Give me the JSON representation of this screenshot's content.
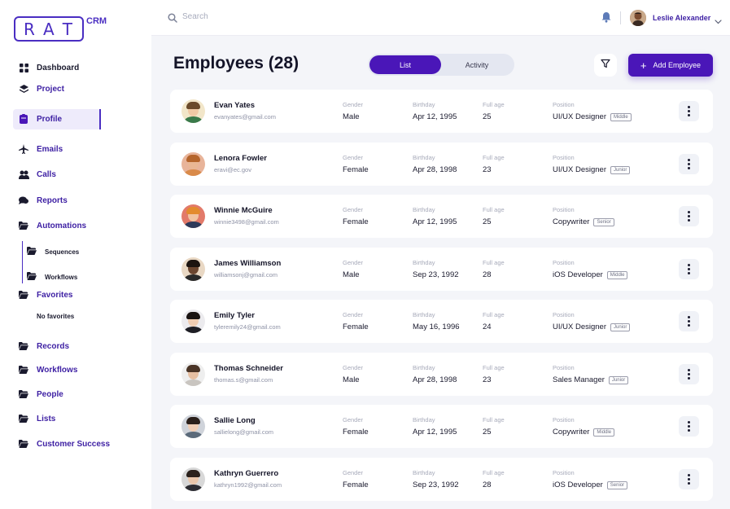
{
  "logo": {
    "letters": [
      "R",
      "A",
      "T"
    ],
    "suffix": "CRM"
  },
  "sidebar": {
    "items": [
      {
        "label": "Dashboard",
        "icon": "grid-icon"
      },
      {
        "label": "Project",
        "icon": "layers-icon"
      },
      {
        "label": "Profile",
        "icon": "clipboard-icon",
        "active": true
      },
      {
        "label": "Emails",
        "icon": "plane-icon"
      },
      {
        "label": "Calls",
        "icon": "users-icon"
      },
      {
        "label": "Reports",
        "icon": "chat-icon"
      },
      {
        "label": "Automations",
        "icon": "folder-open-icon"
      }
    ],
    "sub_items": [
      {
        "label": "Sequences",
        "icon": "folder-icon"
      },
      {
        "label": "Workflows",
        "icon": "folder-icon"
      }
    ],
    "favorites": {
      "label": "Favorites",
      "empty_text": "No favorites"
    },
    "groups": [
      {
        "label": "Records"
      },
      {
        "label": "Workflows"
      },
      {
        "label": "People"
      },
      {
        "label": "Lists"
      },
      {
        "label": "Customer Success"
      }
    ]
  },
  "topbar": {
    "search_placeholder": "Search",
    "user_name": "Leslie Alexander"
  },
  "page": {
    "title": "Employees (28)",
    "tabs": [
      "List",
      "Activity"
    ],
    "active_tab": "List",
    "add_button": "Add Employee"
  },
  "columns": {
    "gender": "Gender",
    "birthday": "Birthday",
    "age": "Full age",
    "position": "Position"
  },
  "employees": [
    {
      "name": "Evan Yates",
      "email": "evanyates@gmail.com",
      "gender": "Male",
      "birthday": "Apr 12, 1995",
      "age": "25",
      "position": "UI/UX Designer",
      "level": "Middle"
    },
    {
      "name": "Lenora Fowler",
      "email": "eravi@ec.gov",
      "gender": "Female",
      "birthday": "Apr 28, 1998",
      "age": "23",
      "position": "UI/UX Designer",
      "level": "Junior"
    },
    {
      "name": "Winnie McGuire",
      "email": "winnie3498@gmail.com",
      "gender": "Female",
      "birthday": "Apr 12, 1995",
      "age": "25",
      "position": "Copywriter",
      "level": "Senior"
    },
    {
      "name": "James Williamson",
      "email": "williamsonj@gmail.com",
      "gender": "Male",
      "birthday": "Sep 23, 1992",
      "age": "28",
      "position": "iOS Developer",
      "level": "Middle"
    },
    {
      "name": "Emily Tyler",
      "email": "tyleremily24@gmail.com",
      "gender": "Female",
      "birthday": "May 16, 1996",
      "age": "24",
      "position": "UI/UX Designer",
      "level": "Junior"
    },
    {
      "name": "Thomas Schneider",
      "email": "thomas.s@gmail.com",
      "gender": "Male",
      "birthday": "Apr 28, 1998",
      "age": "23",
      "position": "Sales Manager",
      "level": "Junior"
    },
    {
      "name": "Sallie Long",
      "email": "sallielong@gmail.com",
      "gender": "Female",
      "birthday": "Apr 12, 1995",
      "age": "25",
      "position": "Copywriter",
      "level": "Middle"
    },
    {
      "name": "Kathryn Guerrero",
      "email": "kathryn1992@gmail.com",
      "gender": "Female",
      "birthday": "Sep 23, 1992",
      "age": "28",
      "position": "iOS Developer",
      "level": "Senior"
    }
  ],
  "colors": {
    "brand": "#4a16b8",
    "brand_text": "#3d1fa3",
    "background": "#f4f5f9"
  }
}
